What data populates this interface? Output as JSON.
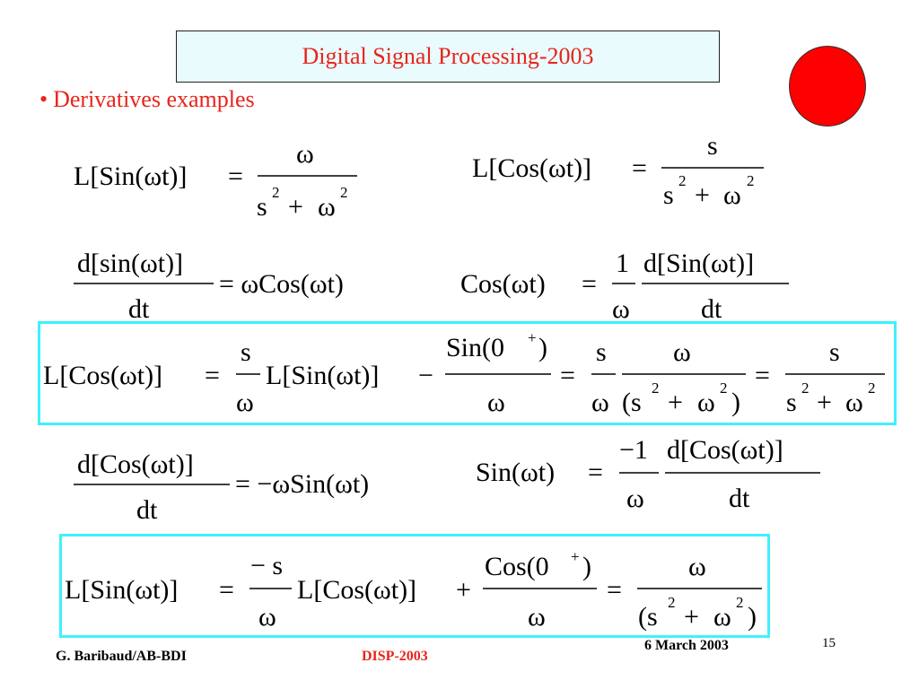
{
  "slide": {
    "title": "Digital Signal Processing-2003",
    "bullet": "Derivatives examples"
  },
  "equations": {
    "e1": {
      "lhs": "L[Sin(ωt)]",
      "eq": "=",
      "num": "ω",
      "den_s": "s",
      "den_plus": "+",
      "den_w": "ω",
      "exp": "2"
    },
    "e2": {
      "lhs": "L[Cos(ωt)]",
      "eq": "=",
      "num": "s",
      "den_s": "s",
      "den_plus": "+",
      "den_w": "ω",
      "exp": "2"
    },
    "e3": {
      "num": "d[sin(ωt)]",
      "den": "dt",
      "rhs": "= ωCos(ωt)"
    },
    "e4": {
      "lhs": "Cos(ωt)",
      "eq": "=",
      "c_num": "1",
      "c_den": "ω",
      "num": "d[Sin(ωt)]",
      "den": "dt"
    },
    "e5": {
      "lhs": "L[Cos(ωt)]",
      "eq": "=",
      "f1_num": "s",
      "f1_den": "ω",
      "mid": "L[Sin(ωt)]",
      "minus": "−",
      "f2_num": "Sin(0",
      "f2_plus": "+",
      "f2_close": ")",
      "f2_den": "ω",
      "eq2": "=",
      "f3_num": "s",
      "f3_den": "ω",
      "f4_num": "ω",
      "f4_den_open": "(s",
      "f4_den_plus": "+",
      "f4_den_w": "ω",
      "f4_den_close": ")",
      "eq3": "=",
      "f5_num": "s",
      "f5_den_s": "s",
      "f5_den_plus": "+",
      "f5_den_w": "ω",
      "exp": "2"
    },
    "e6": {
      "num": "d[Cos(ωt)]",
      "den": "dt",
      "rhs": "= −ωSin(ωt)"
    },
    "e7": {
      "lhs": "Sin(ωt)",
      "eq": "=",
      "c_num": "−1",
      "c_den": "ω",
      "num": "d[Cos(ωt)]",
      "den": "dt"
    },
    "e8": {
      "lhs": "L[Sin(ωt)]",
      "eq": "=",
      "f1_num": "− s",
      "f1_den": "ω",
      "mid": "L[Cos(ωt)]",
      "plus": "+",
      "f2_num": "Cos(0",
      "f2_plus": "+",
      "f2_close": ")",
      "f2_den": "ω",
      "eq2": "=",
      "f3_num": "ω",
      "f3_den_open": "(s",
      "f3_den_plus": "+",
      "f3_den_w": "ω",
      "f3_den_close": ")",
      "exp": "2"
    }
  },
  "footer": {
    "author": "G. Baribaud/AB-BDI",
    "course": "DISP-2003",
    "date": "6 March 2003",
    "page": "15"
  },
  "colors": {
    "title_text": "#e8241b",
    "title_bg": "#e9fbfc",
    "box_border": "#3ff0ff",
    "circle": "#ff0000"
  }
}
